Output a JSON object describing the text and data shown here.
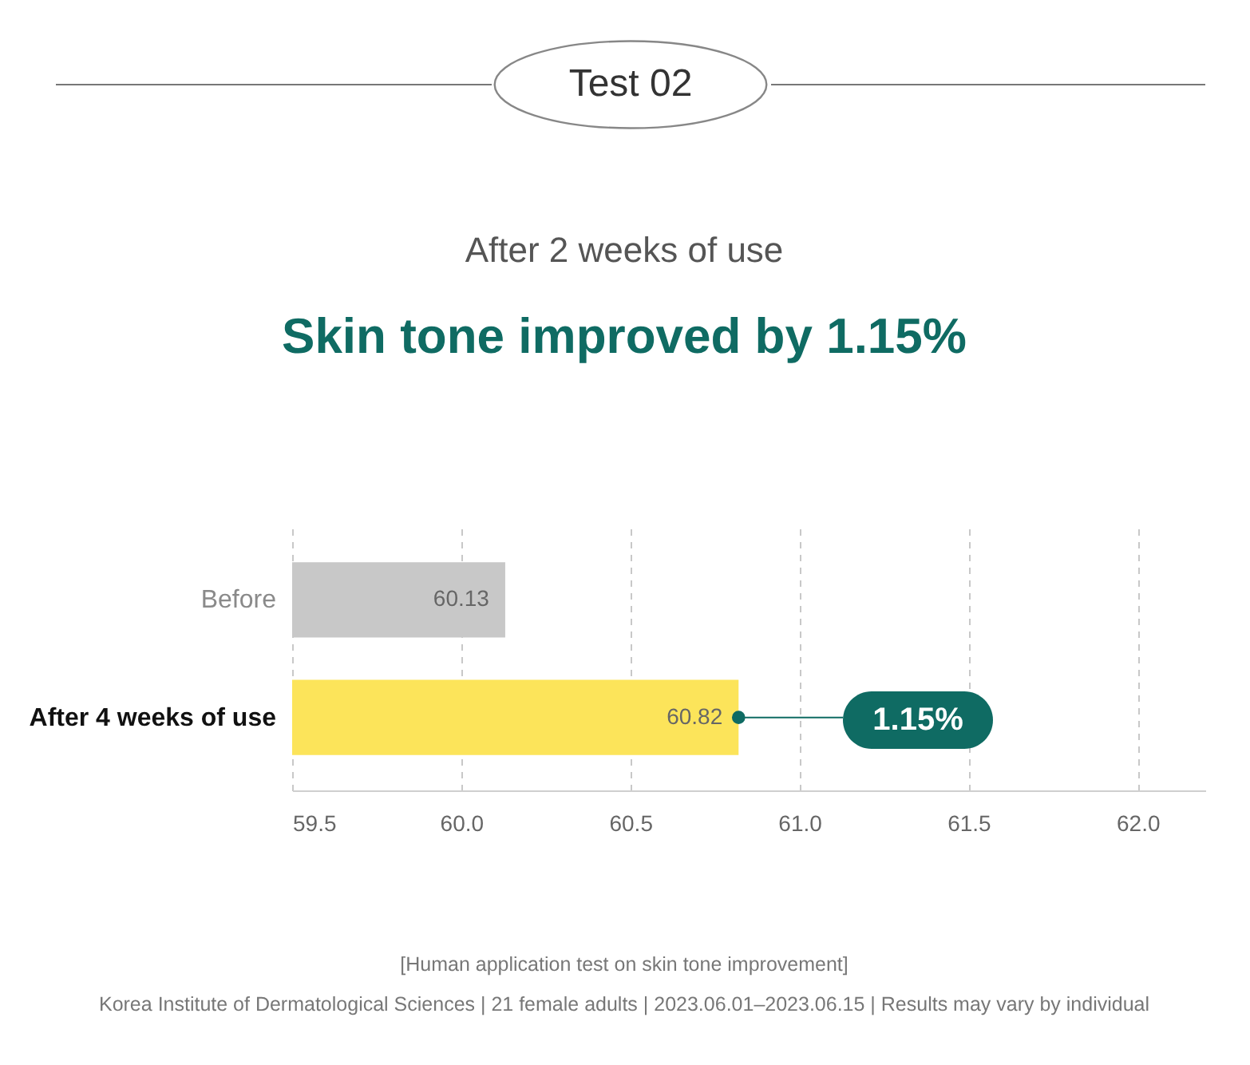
{
  "chart_data": {
    "type": "bar",
    "orientation": "horizontal",
    "title": "Skin tone improved by 1.15%",
    "subtitle": "After 2 weeks of use",
    "categories": [
      "Before",
      "After 4 weeks of use"
    ],
    "base": [
      59.5,
      59.5
    ],
    "values": [
      0.63,
      1.32
    ],
    "value_labels": [
      "60.13",
      "60.82"
    ],
    "colors": [
      "#c8c8c8",
      "#fce45a"
    ],
    "xlim": [
      59.5,
      62.2
    ],
    "xticks": [
      {
        "value": 59.5,
        "label": "59.5"
      },
      {
        "value": 60.0,
        "label": "60.0"
      },
      {
        "value": 60.5,
        "label": "60.5"
      },
      {
        "value": 61.0,
        "label": "61.0"
      },
      {
        "value": 61.5,
        "label": "61.5"
      },
      {
        "value": 62.0,
        "label": "62.0"
      }
    ],
    "grid": "x",
    "annotations": [
      "Test 02",
      "1.15%",
      "[Human application test on skin tone improvement]",
      "Korea Institute of Dermatological Sciences | 21 female adults | 2023.06.01–2023.06.15 | Results may vary by individual"
    ]
  }
}
